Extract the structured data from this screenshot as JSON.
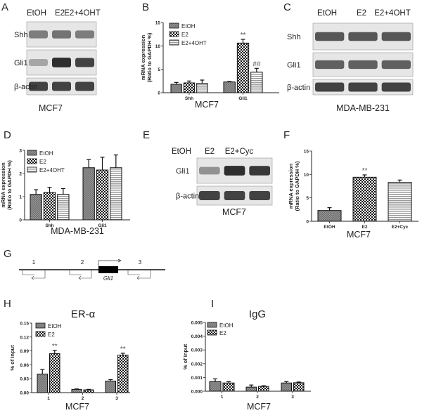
{
  "panels": {
    "A": {
      "label": "A",
      "lanes": [
        "EtOH",
        "E2",
        "E2+4OHT"
      ],
      "rows": [
        "Shh",
        "Gli1",
        "β-actin"
      ],
      "cell_line": "MCF7",
      "band_intensity": [
        [
          0.55,
          0.6,
          0.55
        ],
        [
          0.35,
          0.95,
          0.85
        ],
        [
          0.85,
          0.85,
          0.85
        ]
      ]
    },
    "B": {
      "label": "B"
    },
    "C": {
      "label": "C",
      "lanes": [
        "EtOH",
        "E2",
        "E2+4OHT"
      ],
      "rows": [
        "Shh",
        "Gli1",
        "β-actin"
      ],
      "cell_line": "MDA-MB-231",
      "band_intensity": [
        [
          0.75,
          0.75,
          0.75
        ],
        [
          0.7,
          0.7,
          0.7
        ],
        [
          0.85,
          0.85,
          0.85
        ]
      ]
    },
    "D": {
      "label": "D"
    },
    "E": {
      "label": "E",
      "lanes": [
        "EtOH",
        "E2",
        "E2+Cyc"
      ],
      "rows": [
        "Gli1",
        "β-actin"
      ],
      "cell_line": "MCF7",
      "band_intensity": [
        [
          0.45,
          0.95,
          0.9
        ],
        [
          0.85,
          0.85,
          0.85
        ]
      ]
    },
    "F": {
      "label": "F"
    },
    "G": {
      "label": "G",
      "gene": "Gli1",
      "regions": [
        "1",
        "2",
        "3"
      ]
    },
    "H": {
      "label": "H"
    },
    "I": {
      "label": "I"
    }
  },
  "colors": {
    "etoh": "#8a8a8a",
    "e2": "#111111",
    "stripe": "#9a9a9a",
    "axis": "#222222"
  },
  "chart_data": [
    {
      "id": "B",
      "type": "bar",
      "categories": [
        "Shh",
        "Gli1"
      ],
      "xlabel": "MCF7",
      "ylabel": [
        "mRNA expression",
        "(Ratio to GAPDH %)"
      ],
      "ylim": [
        0,
        15
      ],
      "yticks": [
        "0",
        "5",
        "10",
        "15"
      ],
      "legend": "top-left",
      "series": [
        {
          "name": "EtOH",
          "values": [
            1.8,
            2.3
          ],
          "errors": [
            0.4,
            0.1
          ],
          "pattern": "etoh"
        },
        {
          "name": "E2",
          "values": [
            2.1,
            10.6
          ],
          "errors": [
            0.4,
            0.8
          ],
          "pattern": "e2"
        },
        {
          "name": "E2+4OHT",
          "values": [
            2.0,
            4.4
          ],
          "errors": [
            0.7,
            0.8
          ],
          "pattern": "stripe"
        }
      ],
      "annotations": [
        {
          "series": 1,
          "category": 1,
          "text": "**"
        },
        {
          "series": 2,
          "category": 1,
          "text": "##"
        }
      ]
    },
    {
      "id": "D",
      "type": "bar",
      "categories": [
        "Shh",
        "Gli1"
      ],
      "xlabel": "MDA-MB-231",
      "ylabel": [
        "mRNA expression",
        "(Ratio to GAPDH %)"
      ],
      "ylim": [
        0,
        3
      ],
      "yticks": [
        "0",
        "1",
        "2",
        "3"
      ],
      "legend": "top-left",
      "series": [
        {
          "name": "EtOH",
          "values": [
            1.1,
            2.25
          ],
          "errors": [
            0.2,
            0.35
          ],
          "pattern": "etoh"
        },
        {
          "name": "E2",
          "values": [
            1.18,
            2.15
          ],
          "errors": [
            0.22,
            0.55
          ],
          "pattern": "e2"
        },
        {
          "name": "E2+4OHT",
          "values": [
            1.1,
            2.25
          ],
          "errors": [
            0.25,
            0.55
          ],
          "pattern": "stripe"
        }
      ],
      "annotations": []
    },
    {
      "id": "F",
      "type": "bar",
      "categories": [
        "EtOH",
        "E2",
        "E2+Cyc"
      ],
      "xlabel": "MCF7",
      "ylabel": [
        "mRNA expression",
        "(Ratio to GAPDH %)"
      ],
      "ylim": [
        0,
        15
      ],
      "yticks": [
        "0",
        "5",
        "10",
        "15"
      ],
      "legend": "none",
      "series": [
        {
          "values": [
            2.3,
            9.4,
            8.3
          ],
          "errors": [
            0.6,
            0.5,
            0.5
          ],
          "patterns": [
            "etoh",
            "e2",
            "stripe"
          ]
        }
      ],
      "annotations": [
        {
          "series": 0,
          "category": 1,
          "text": "**"
        }
      ]
    },
    {
      "id": "H",
      "type": "bar",
      "title": "ER-α",
      "categories": [
        "1",
        "2",
        "3"
      ],
      "xlabel": "MCF7",
      "ylabel": [
        "% of Input"
      ],
      "ylim": [
        0,
        0.15
      ],
      "yticks": [
        "0.00",
        "0.03",
        "0.06",
        "0.09",
        "0.12",
        "0.15"
      ],
      "legend": "top-left",
      "series": [
        {
          "name": "EtOH",
          "values": [
            0.04,
            0.007,
            0.025
          ],
          "errors": [
            0.01,
            0.001,
            0.003
          ],
          "pattern": "etoh"
        },
        {
          "name": "E2",
          "values": [
            0.084,
            0.006,
            0.081
          ],
          "errors": [
            0.007,
            0.001,
            0.004
          ],
          "pattern": "e2"
        }
      ],
      "annotations": [
        {
          "series": 1,
          "category": 0,
          "text": "**"
        },
        {
          "series": 1,
          "category": 2,
          "text": "**"
        }
      ]
    },
    {
      "id": "I",
      "type": "bar",
      "title": "IgG",
      "categories": [
        "1",
        "2",
        "3"
      ],
      "xlabel": "MCF7",
      "ylabel": [
        "% of Input"
      ],
      "ylim": [
        0,
        0.005
      ],
      "yticks": [
        "0.000",
        "0.001",
        "0.002",
        "0.003",
        "0.004",
        "0.005"
      ],
      "legend": "top-left",
      "series": [
        {
          "name": "EtOH",
          "values": [
            0.0007,
            0.0003,
            0.0006
          ],
          "errors": [
            0.0002,
            0.00015,
            0.0001
          ],
          "pattern": "etoh"
        },
        {
          "name": "E2",
          "values": [
            0.0006,
            0.00035,
            0.00062
          ],
          "errors": [
            0.0001,
            5e-05,
            5e-05
          ],
          "pattern": "e2"
        }
      ],
      "annotations": []
    }
  ]
}
